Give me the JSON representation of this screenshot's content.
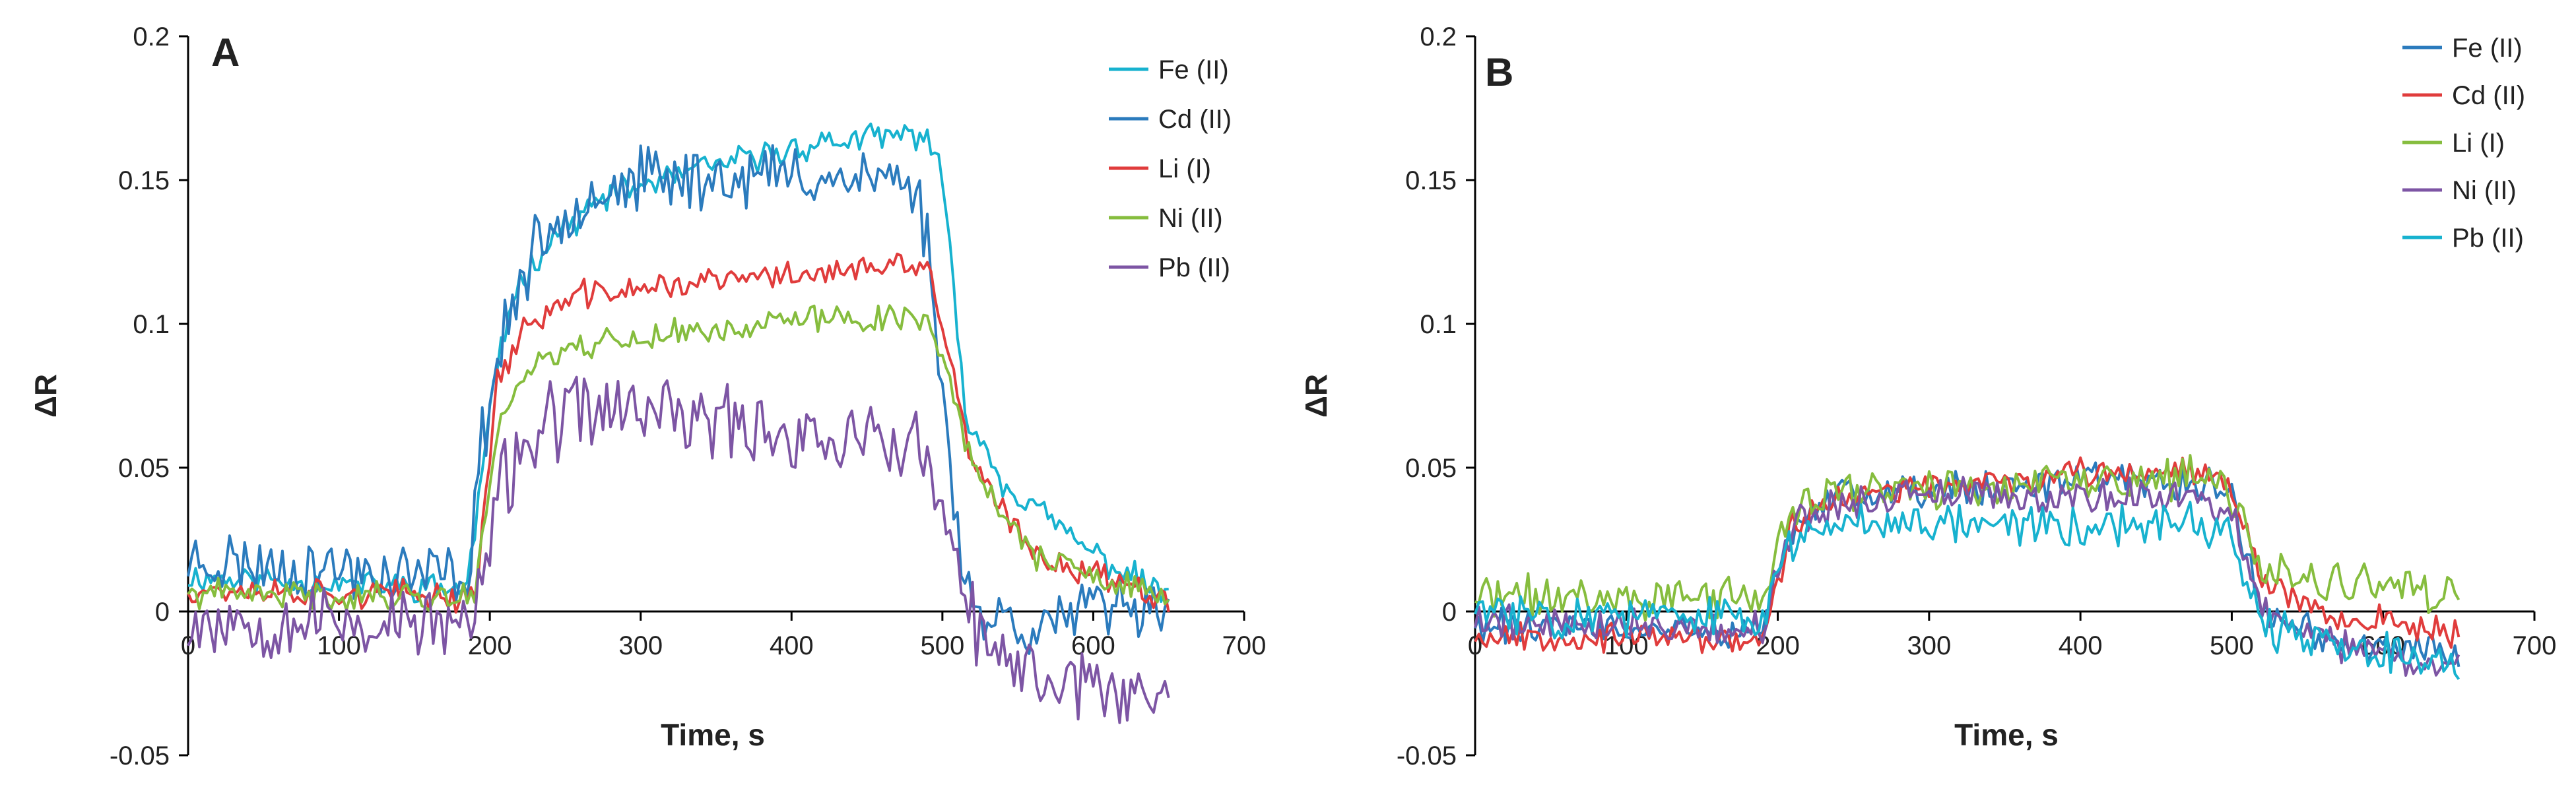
{
  "chart_data": [
    {
      "type": "line",
      "panel_label": "A",
      "xlabel": "Time, s",
      "ylabel": "ΔR",
      "xlim": [
        0,
        700
      ],
      "ylim": [
        -0.05,
        0.2
      ],
      "x_ticks": [
        0,
        100,
        200,
        300,
        400,
        500,
        600,
        700
      ],
      "y_ticks": [
        -0.05,
        0,
        0.05,
        0.1,
        0.15,
        0.2
      ],
      "x_tick_labels": [
        "0",
        "100",
        "200",
        "300",
        "400",
        "500",
        "600",
        "700"
      ],
      "y_tick_labels": [
        "-0.05",
        "0",
        "0.05",
        "0.1",
        "0.15",
        "0.2"
      ],
      "legend_position": "top-right",
      "series": [
        {
          "name": "Fe (II)",
          "color": "#17b2cf",
          "shape": [
            [
              0,
              0.012
            ],
            [
              185,
              0.008
            ],
            [
              200,
              0.07
            ],
            [
              215,
              0.11
            ],
            [
              240,
              0.13
            ],
            [
              280,
              0.145
            ],
            [
              350,
              0.155
            ],
            [
              420,
              0.163
            ],
            [
              490,
              0.166
            ],
            [
              500,
              0.15
            ],
            [
              515,
              0.07
            ],
            [
              540,
              0.045
            ],
            [
              600,
              0.02
            ],
            [
              650,
              0.005
            ]
          ],
          "noise": 0.004,
          "seed": 11
        },
        {
          "name": "Cd (II)",
          "color": "#2b7bbd",
          "shape": [
            [
              0,
              0.018
            ],
            [
              185,
              0.012
            ],
            [
              195,
              0.06
            ],
            [
              210,
              0.1
            ],
            [
              230,
              0.125
            ],
            [
              260,
              0.145
            ],
            [
              300,
              0.15
            ],
            [
              400,
              0.152
            ],
            [
              480,
              0.15
            ],
            [
              490,
              0.13
            ],
            [
              505,
              0.05
            ],
            [
              520,
              0.0
            ],
            [
              560,
              -0.005
            ],
            [
              600,
              0.0
            ],
            [
              650,
              0.005
            ]
          ],
          "noise": 0.009,
          "seed": 23
        },
        {
          "name": "Li (I)",
          "color": "#e03c3c",
          "shape": [
            [
              0,
              0.008
            ],
            [
              190,
              0.005
            ],
            [
              205,
              0.08
            ],
            [
              225,
              0.1
            ],
            [
              260,
              0.11
            ],
            [
              350,
              0.115
            ],
            [
              420,
              0.118
            ],
            [
              490,
              0.12
            ],
            [
              500,
              0.1
            ],
            [
              520,
              0.05
            ],
            [
              560,
              0.02
            ],
            [
              620,
              0.01
            ],
            [
              650,
              0.005
            ]
          ],
          "noise": 0.004,
          "seed": 37
        },
        {
          "name": "Ni (II)",
          "color": "#86bd3e",
          "shape": [
            [
              0,
              0.006
            ],
            [
              190,
              0.005
            ],
            [
              205,
              0.065
            ],
            [
              225,
              0.085
            ],
            [
              260,
              0.093
            ],
            [
              350,
              0.098
            ],
            [
              420,
              0.102
            ],
            [
              490,
              0.102
            ],
            [
              500,
              0.09
            ],
            [
              520,
              0.05
            ],
            [
              560,
              0.02
            ],
            [
              620,
              0.008
            ],
            [
              650,
              0.005
            ]
          ],
          "noise": 0.004,
          "seed": 41
        },
        {
          "name": "Pb (II)",
          "color": "#7d55a4",
          "shape": [
            [
              0,
              -0.002
            ],
            [
              190,
              -0.005
            ],
            [
              205,
              0.04
            ],
            [
              225,
              0.06
            ],
            [
              260,
              0.07
            ],
            [
              300,
              0.07
            ],
            [
              400,
              0.062
            ],
            [
              480,
              0.058
            ],
            [
              495,
              0.045
            ],
            [
              515,
              0.0
            ],
            [
              540,
              -0.02
            ],
            [
              600,
              -0.025
            ],
            [
              650,
              -0.03
            ]
          ],
          "noise": 0.011,
          "seed": 53
        }
      ]
    },
    {
      "type": "line",
      "panel_label": "B",
      "xlabel": "Time, s",
      "ylabel": "ΔR",
      "xlim": [
        0,
        700
      ],
      "ylim": [
        -0.05,
        0.2
      ],
      "x_ticks": [
        0,
        100,
        200,
        300,
        400,
        500,
        600,
        700
      ],
      "y_ticks": [
        -0.05,
        0,
        0.05,
        0.1,
        0.15,
        0.2
      ],
      "x_tick_labels": [
        "0",
        "100",
        "200",
        "300",
        "400",
        "500",
        "600",
        "700"
      ],
      "y_tick_labels": [
        "-0.05",
        "0",
        "0.05",
        "0.1",
        "0.15",
        "0.2"
      ],
      "legend_position": "top-right",
      "series": [
        {
          "name": "Fe (II)",
          "color": "#2b7bbd",
          "shape": [
            [
              0,
              -0.005
            ],
            [
              190,
              -0.008
            ],
            [
              210,
              0.03
            ],
            [
              240,
              0.04
            ],
            [
              300,
              0.042
            ],
            [
              400,
              0.045
            ],
            [
              480,
              0.045
            ],
            [
              500,
              0.04
            ],
            [
              520,
              0.0
            ],
            [
              560,
              -0.01
            ],
            [
              650,
              -0.015
            ]
          ],
          "noise": 0.005,
          "seed": 61
        },
        {
          "name": "Cd (II)",
          "color": "#e03c3c",
          "shape": [
            [
              0,
              -0.008
            ],
            [
              190,
              -0.01
            ],
            [
              210,
              0.03
            ],
            [
              240,
              0.04
            ],
            [
              300,
              0.043
            ],
            [
              400,
              0.048
            ],
            [
              480,
              0.05
            ],
            [
              500,
              0.045
            ],
            [
              520,
              0.01
            ],
            [
              560,
              0.0
            ],
            [
              650,
              -0.008
            ]
          ],
          "noise": 0.004,
          "seed": 67
        },
        {
          "name": "Li (I)",
          "color": "#86bd3e",
          "shape": [
            [
              0,
              0.005
            ],
            [
              190,
              0.005
            ],
            [
              210,
              0.035
            ],
            [
              240,
              0.042
            ],
            [
              300,
              0.043
            ],
            [
              400,
              0.045
            ],
            [
              480,
              0.046
            ],
            [
              500,
              0.04
            ],
            [
              520,
              0.015
            ],
            [
              560,
              0.01
            ],
            [
              650,
              0.005
            ]
          ],
          "noise": 0.006,
          "seed": 71
        },
        {
          "name": "Ni (II)",
          "color": "#7d55a4",
          "shape": [
            [
              0,
              -0.003
            ],
            [
              190,
              -0.006
            ],
            [
              210,
              0.03
            ],
            [
              240,
              0.038
            ],
            [
              300,
              0.04
            ],
            [
              400,
              0.04
            ],
            [
              480,
              0.04
            ],
            [
              500,
              0.035
            ],
            [
              520,
              0.0
            ],
            [
              560,
              -0.01
            ],
            [
              650,
              -0.02
            ]
          ],
          "noise": 0.005,
          "seed": 79
        },
        {
          "name": "Pb (II)",
          "color": "#17b2cf",
          "shape": [
            [
              0,
              0.0
            ],
            [
              190,
              -0.003
            ],
            [
              210,
              0.025
            ],
            [
              240,
              0.032
            ],
            [
              300,
              0.032
            ],
            [
              400,
              0.03
            ],
            [
              480,
              0.03
            ],
            [
              500,
              0.028
            ],
            [
              520,
              -0.005
            ],
            [
              560,
              -0.012
            ],
            [
              650,
              -0.018
            ]
          ],
          "noise": 0.006,
          "seed": 83
        }
      ]
    }
  ]
}
